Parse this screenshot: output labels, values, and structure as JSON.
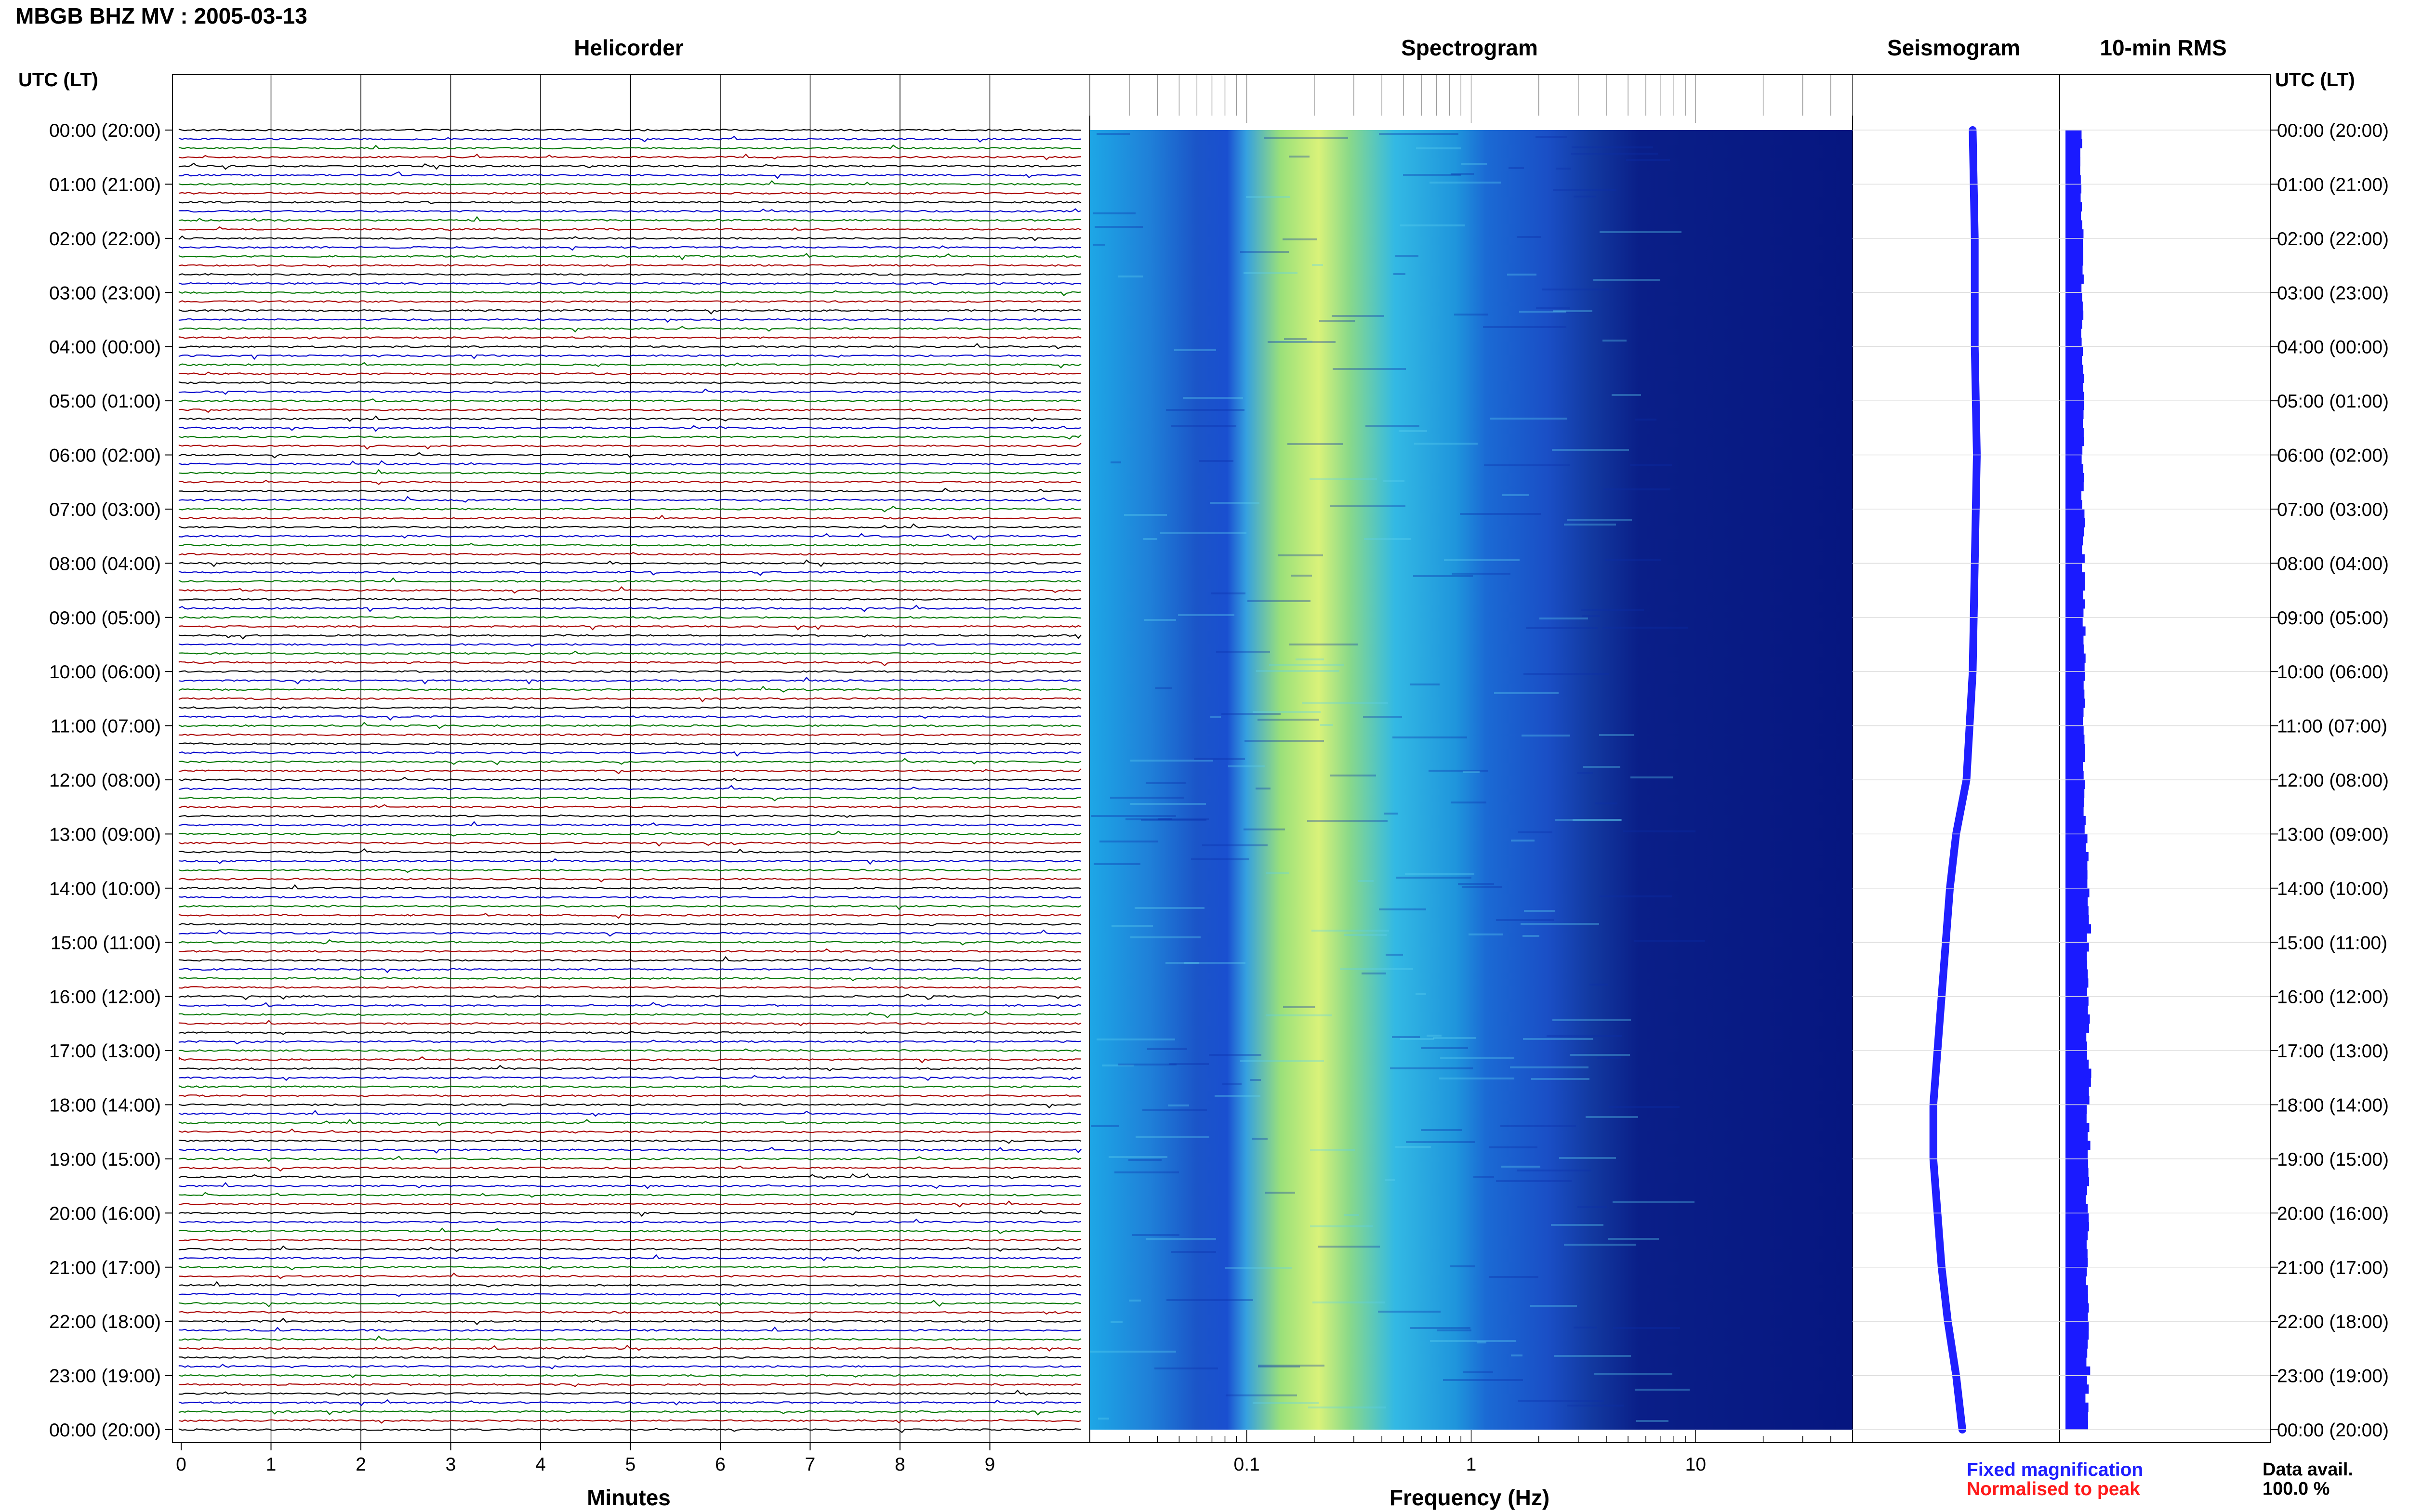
{
  "header": {
    "title": "MBGB BHZ MV : 2005-03-13"
  },
  "panels": {
    "helicorder": "Helicorder",
    "spectrogram": "Spectrogram",
    "seismogram": "Seismogram",
    "rms": "10-min RMS"
  },
  "axes": {
    "time_header_left": "UTC (LT)",
    "time_header_right": "UTC (LT)",
    "time_labels": [
      "00:00 (20:00)",
      "01:00 (21:00)",
      "02:00 (22:00)",
      "03:00 (23:00)",
      "04:00 (00:00)",
      "05:00 (01:00)",
      "06:00 (02:00)",
      "07:00 (03:00)",
      "08:00 (04:00)",
      "09:00 (05:00)",
      "10:00 (06:00)",
      "11:00 (07:00)",
      "12:00 (08:00)",
      "13:00 (09:00)",
      "14:00 (10:00)",
      "15:00 (11:00)",
      "16:00 (12:00)",
      "17:00 (13:00)",
      "18:00 (14:00)",
      "19:00 (15:00)",
      "20:00 (16:00)",
      "21:00 (17:00)",
      "22:00 (18:00)",
      "23:00 (19:00)",
      "00:00 (20:00)"
    ],
    "minutes_ticks": [
      "0",
      "1",
      "2",
      "3",
      "4",
      "5",
      "6",
      "7",
      "8",
      "9"
    ],
    "minutes_label": "Minutes",
    "frequency_ticks": [
      "0.1",
      "1",
      "10"
    ],
    "frequency_label": "Frequency (Hz)"
  },
  "legend": {
    "fixed": "Fixed magnification",
    "normalised": "Normalised to peak",
    "avail_label": "Data avail.",
    "avail_value": "100.0 %"
  },
  "colors": {
    "trace_cycle": [
      "#000000",
      "#0000cc",
      "#007700",
      "#aa0000"
    ],
    "seismogram": "#2020ff",
    "rms": "#1a1aff",
    "legend_fixed": "#1f1fff",
    "legend_normalised": "#ff1a1a"
  },
  "chart_data": [
    {
      "type": "line",
      "name": "helicorder",
      "title": "Helicorder",
      "xlabel": "Minutes",
      "xlim": [
        0,
        10
      ],
      "traces_per_hour": 6,
      "hours": 24
    },
    {
      "type": "heatmap",
      "name": "spectrogram",
      "title": "Spectrogram",
      "xlabel": "Frequency (Hz)",
      "xscale": "log",
      "xlim": [
        0.02,
        50
      ],
      "peak_frequency_hz": 0.25,
      "intense_band_hz": [
        0.15,
        0.4
      ]
    },
    {
      "type": "line",
      "name": "seismogram",
      "title": "Seismogram",
      "y_hours": [
        0,
        2,
        4,
        6,
        8,
        10,
        12,
        13,
        14,
        15,
        16,
        17,
        18,
        19,
        20,
        21,
        22,
        23,
        24
      ],
      "offset": [
        0.58,
        0.59,
        0.59,
        0.6,
        0.59,
        0.58,
        0.55,
        0.5,
        0.47,
        0.45,
        0.43,
        0.41,
        0.39,
        0.39,
        0.41,
        0.43,
        0.46,
        0.5,
        0.53
      ]
    },
    {
      "type": "bar",
      "name": "rms",
      "title": "10-min RMS",
      "categories_hours": [
        0,
        1,
        2,
        3,
        4,
        5,
        6,
        7,
        8,
        9,
        10,
        11,
        12,
        13,
        14,
        15,
        16,
        17,
        18,
        19,
        20,
        21,
        22,
        23
      ],
      "values": [
        0.4,
        0.42,
        0.43,
        0.43,
        0.45,
        0.45,
        0.44,
        0.46,
        0.46,
        0.47,
        0.48,
        0.48,
        0.5,
        0.55,
        0.6,
        0.58,
        0.58,
        0.6,
        0.58,
        0.57,
        0.56,
        0.57,
        0.58,
        0.55
      ]
    }
  ]
}
